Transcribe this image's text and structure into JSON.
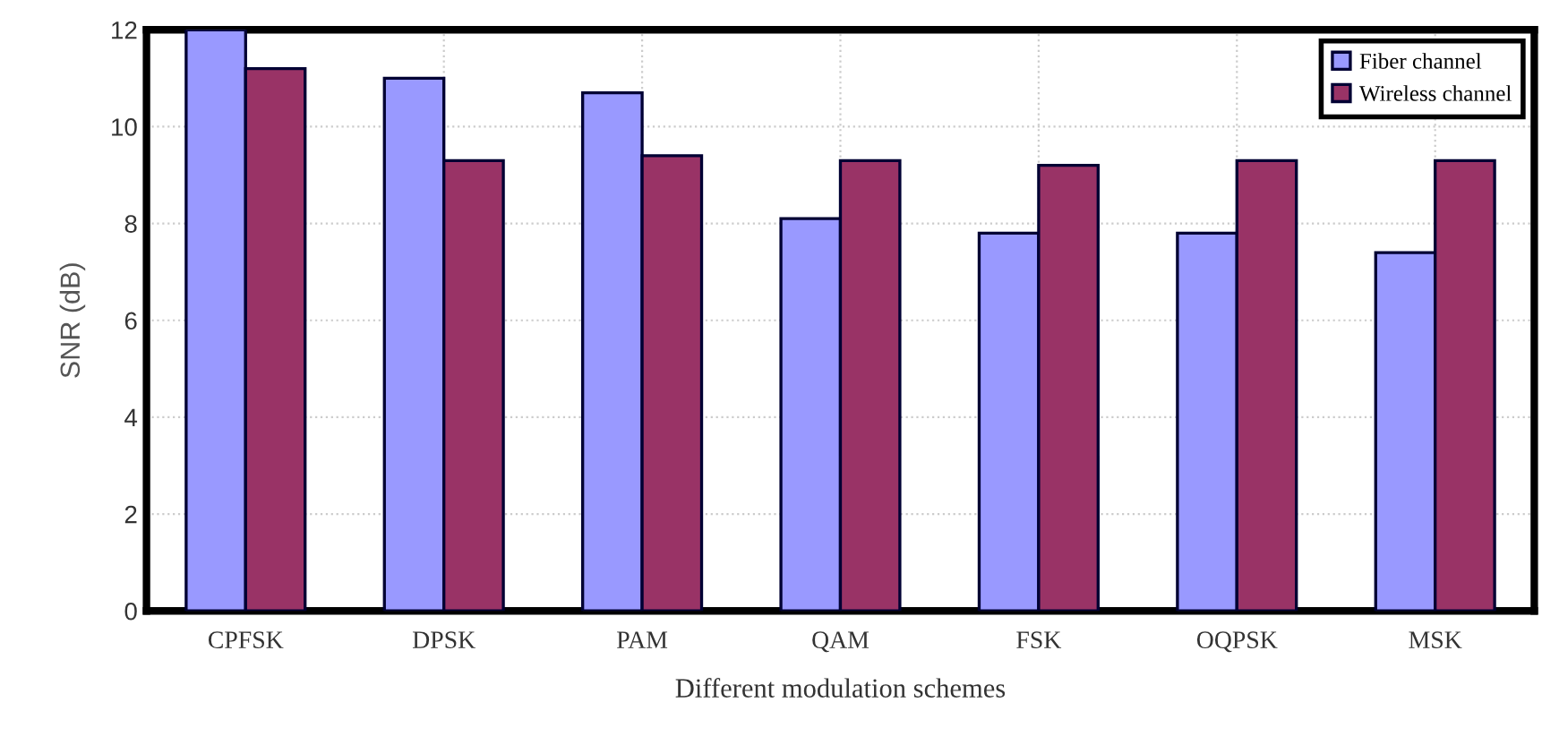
{
  "chart_data": {
    "type": "bar",
    "xlabel": "Different modulation schemes",
    "ylabel": "SNR (dB)",
    "categories": [
      "CPFSK",
      "DPSK",
      "PAM",
      "QAM",
      "FSK",
      "OQPSK",
      "MSK"
    ],
    "series": [
      {
        "name": "Fiber channel",
        "color": "#9999ff",
        "values": [
          12.0,
          11.0,
          10.7,
          8.1,
          7.8,
          7.8,
          7.4
        ]
      },
      {
        "name": "Wireless channel",
        "color": "#993366",
        "values": [
          11.2,
          9.3,
          9.4,
          9.3,
          9.2,
          9.3,
          9.3
        ]
      }
    ],
    "ylim": [
      0,
      12
    ],
    "yticks": [
      0,
      2,
      4,
      6,
      8,
      10,
      12
    ],
    "grid": true,
    "legend": "top right"
  }
}
